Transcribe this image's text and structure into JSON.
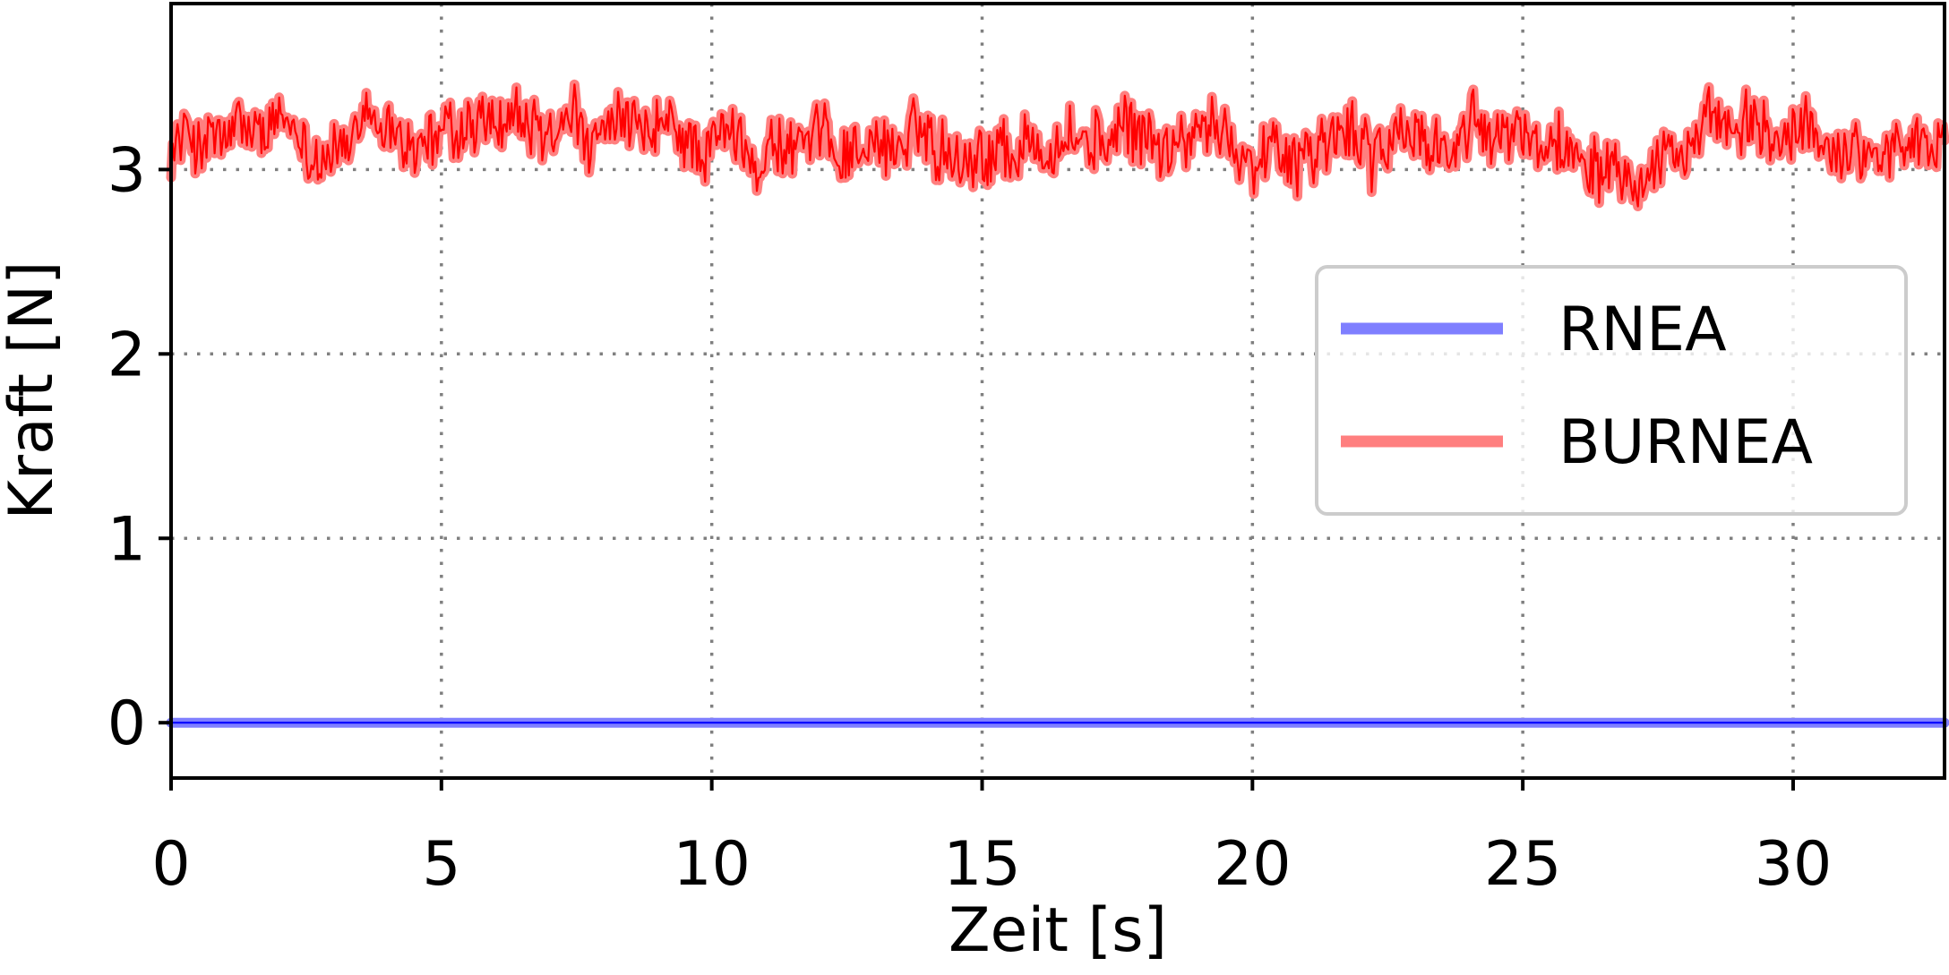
{
  "chart_data": {
    "type": "line",
    "title": "",
    "xlabel": "Zeit [s]",
    "ylabel": "Kraft [N]",
    "xlim": [
      0,
      32.8
    ],
    "ylim": [
      -0.3,
      3.9
    ],
    "x_ticks": [
      0,
      5,
      10,
      15,
      20,
      25,
      30
    ],
    "y_ticks": [
      0,
      1,
      2,
      3
    ],
    "grid": true,
    "legend_position": "center-right",
    "series": [
      {
        "name": "RNEA",
        "color": "#0000ff",
        "band_color": "#7f7fff",
        "x_start": 0,
        "x_end": 32.8,
        "mean": 0.0,
        "variation": 0.0
      },
      {
        "name": "BURNEA",
        "color": "#ff0000",
        "band_color": "#ff7f7f",
        "x_start": 0,
        "x_end": 32.8,
        "mean": 3.15,
        "variation": 0.35,
        "min": 2.8,
        "max": 3.57
      }
    ]
  }
}
